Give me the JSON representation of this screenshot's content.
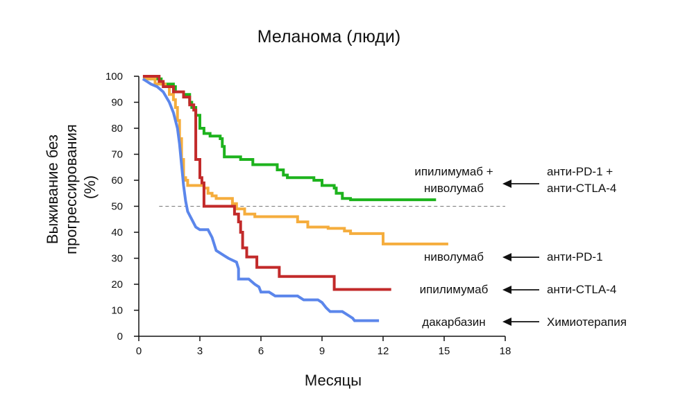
{
  "chart_data": {
    "type": "line",
    "title": "Меланома (люди)",
    "xlabel": "Месяцы",
    "ylabel_lines": [
      "Выживание без",
      "прогрессирования",
      "(%)"
    ],
    "xlim": [
      0,
      18
    ],
    "ylim": [
      0,
      100
    ],
    "xticks": [
      0,
      3,
      6,
      9,
      12,
      15,
      18
    ],
    "yticks": [
      0,
      10,
      20,
      30,
      40,
      50,
      60,
      70,
      80,
      90,
      100
    ],
    "grid": false,
    "reference_line": {
      "y": 50,
      "style": "dashed",
      "color": "#777777"
    },
    "series": [
      {
        "name_lines": [
          "ипилимумаб +",
          "ниволумаб"
        ],
        "therapy_lines": [
          "анти-PD-1 +",
          "анти-CTLA-4"
        ],
        "color": "#1db31d",
        "points": [
          [
            0.2,
            99
          ],
          [
            1.1,
            99
          ],
          [
            1.1,
            97
          ],
          [
            1.7,
            97
          ],
          [
            1.7,
            96
          ],
          [
            1.8,
            96
          ],
          [
            1.8,
            94
          ],
          [
            2.2,
            94
          ],
          [
            2.2,
            93
          ],
          [
            2.5,
            93
          ],
          [
            2.5,
            90
          ],
          [
            2.6,
            90
          ],
          [
            2.6,
            88
          ],
          [
            2.8,
            88
          ],
          [
            2.8,
            85
          ],
          [
            3.0,
            85
          ],
          [
            3.0,
            80
          ],
          [
            3.2,
            80
          ],
          [
            3.2,
            78
          ],
          [
            3.5,
            78
          ],
          [
            3.5,
            77
          ],
          [
            4.0,
            77
          ],
          [
            4.0,
            76
          ],
          [
            4.1,
            76
          ],
          [
            4.1,
            73
          ],
          [
            4.2,
            73
          ],
          [
            4.2,
            69
          ],
          [
            5.0,
            69
          ],
          [
            5.0,
            68
          ],
          [
            5.6,
            68
          ],
          [
            5.6,
            66
          ],
          [
            6.8,
            66
          ],
          [
            6.8,
            64
          ],
          [
            7.1,
            64
          ],
          [
            7.1,
            62
          ],
          [
            7.3,
            62
          ],
          [
            7.3,
            61
          ],
          [
            8.6,
            61
          ],
          [
            8.6,
            60
          ],
          [
            9.0,
            60
          ],
          [
            9.0,
            58
          ],
          [
            9.6,
            58
          ],
          [
            9.6,
            57
          ],
          [
            9.7,
            57
          ],
          [
            9.7,
            55
          ],
          [
            10.0,
            55
          ],
          [
            10.0,
            53
          ],
          [
            10.4,
            53
          ],
          [
            10.4,
            52.5
          ],
          [
            14.6,
            52.5
          ]
        ]
      },
      {
        "name_lines": [
          "ниволумаб"
        ],
        "therapy_lines": [
          "анти-PD-1"
        ],
        "color": "#f5ad3d",
        "points": [
          [
            0.2,
            99
          ],
          [
            0.8,
            99
          ],
          [
            0.8,
            97
          ],
          [
            1.3,
            97
          ],
          [
            1.3,
            96
          ],
          [
            1.5,
            96
          ],
          [
            1.5,
            93
          ],
          [
            1.7,
            93
          ],
          [
            1.7,
            91
          ],
          [
            1.8,
            91
          ],
          [
            1.8,
            88
          ],
          [
            1.9,
            88
          ],
          [
            1.9,
            83
          ],
          [
            2.0,
            83
          ],
          [
            2.0,
            76
          ],
          [
            2.1,
            76
          ],
          [
            2.1,
            68
          ],
          [
            2.2,
            68
          ],
          [
            2.2,
            61
          ],
          [
            2.3,
            61
          ],
          [
            2.3,
            60
          ],
          [
            2.4,
            60
          ],
          [
            2.4,
            58
          ],
          [
            3.2,
            58
          ],
          [
            3.2,
            57
          ],
          [
            3.4,
            57
          ],
          [
            3.4,
            55
          ],
          [
            3.6,
            55
          ],
          [
            3.6,
            54
          ],
          [
            3.8,
            54
          ],
          [
            3.8,
            53
          ],
          [
            4.6,
            53
          ],
          [
            4.6,
            51
          ],
          [
            4.8,
            51
          ],
          [
            4.8,
            49
          ],
          [
            5.2,
            49
          ],
          [
            5.2,
            47
          ],
          [
            5.7,
            47
          ],
          [
            5.7,
            46
          ],
          [
            7.8,
            46
          ],
          [
            7.8,
            44
          ],
          [
            8.3,
            44
          ],
          [
            8.3,
            42
          ],
          [
            9.3,
            42
          ],
          [
            9.3,
            41.5
          ],
          [
            10.1,
            41.5
          ],
          [
            10.1,
            40.5
          ],
          [
            10.4,
            40.5
          ],
          [
            10.4,
            39.5
          ],
          [
            12.0,
            39.5
          ],
          [
            12.0,
            35.5
          ],
          [
            15.2,
            35.5
          ]
        ]
      },
      {
        "name_lines": [
          "ипилимумаб"
        ],
        "therapy_lines": [
          "анти-CTLA-4"
        ],
        "color": "#c22a2a",
        "points": [
          [
            0.2,
            100
          ],
          [
            1.0,
            100
          ],
          [
            1.0,
            98
          ],
          [
            1.2,
            98
          ],
          [
            1.2,
            96
          ],
          [
            1.7,
            96
          ],
          [
            1.7,
            94
          ],
          [
            2.2,
            94
          ],
          [
            2.2,
            92
          ],
          [
            2.5,
            92
          ],
          [
            2.5,
            89
          ],
          [
            2.7,
            89
          ],
          [
            2.7,
            87
          ],
          [
            2.8,
            87
          ],
          [
            2.8,
            68
          ],
          [
            3.0,
            68
          ],
          [
            3.0,
            61
          ],
          [
            3.1,
            61
          ],
          [
            3.1,
            59
          ],
          [
            3.2,
            59
          ],
          [
            3.2,
            50
          ],
          [
            4.7,
            50
          ],
          [
            4.7,
            47
          ],
          [
            4.9,
            47
          ],
          [
            4.9,
            44
          ],
          [
            5.0,
            44
          ],
          [
            5.0,
            40
          ],
          [
            5.1,
            40
          ],
          [
            5.1,
            34
          ],
          [
            5.3,
            34
          ],
          [
            5.3,
            30.5
          ],
          [
            5.8,
            30.5
          ],
          [
            5.8,
            26.5
          ],
          [
            6.9,
            26.5
          ],
          [
            6.9,
            23
          ],
          [
            9.6,
            23
          ],
          [
            9.6,
            18
          ],
          [
            12.4,
            18
          ]
        ]
      },
      {
        "name_lines": [
          "дакарбазин"
        ],
        "therapy_lines": [
          "Химиотерапия"
        ],
        "color": "#5b86eb",
        "points": [
          [
            0.2,
            99
          ],
          [
            0.4,
            98
          ],
          [
            0.6,
            97
          ],
          [
            0.9,
            96
          ],
          [
            1.2,
            94
          ],
          [
            1.5,
            90
          ],
          [
            1.7,
            86
          ],
          [
            1.9,
            80
          ],
          [
            2.0,
            74
          ],
          [
            2.1,
            66
          ],
          [
            2.2,
            58
          ],
          [
            2.3,
            52
          ],
          [
            2.4,
            48
          ],
          [
            2.6,
            45
          ],
          [
            2.8,
            42
          ],
          [
            3.0,
            41
          ],
          [
            3.4,
            41
          ],
          [
            3.6,
            38
          ],
          [
            3.8,
            33
          ],
          [
            4.2,
            31
          ],
          [
            4.4,
            30
          ],
          [
            4.8,
            28.5
          ],
          [
            4.9,
            26
          ],
          [
            4.9,
            22
          ],
          [
            5.4,
            22
          ],
          [
            5.7,
            20
          ],
          [
            5.9,
            19
          ],
          [
            6.0,
            17
          ],
          [
            6.4,
            17
          ],
          [
            6.6,
            16
          ],
          [
            6.7,
            15.5
          ],
          [
            7.8,
            15.5
          ],
          [
            8.1,
            14
          ],
          [
            8.8,
            14
          ],
          [
            9.0,
            13
          ],
          [
            9.2,
            11
          ],
          [
            9.4,
            9.5
          ],
          [
            10.0,
            9.5
          ],
          [
            10.3,
            8
          ],
          [
            10.5,
            7
          ],
          [
            10.6,
            6
          ],
          [
            11.8,
            6
          ]
        ]
      }
    ]
  }
}
